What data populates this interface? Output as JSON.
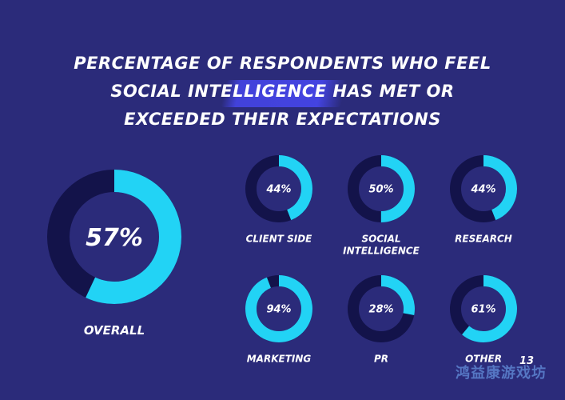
{
  "colors": {
    "background": "#2b2b7a",
    "track": "#13134a",
    "fill": "#22d3f5",
    "text": "#ffffff"
  },
  "page_number": "13",
  "watermark": "鸿益康游戏坊",
  "chart_data": [
    {
      "type": "pie",
      "title": "PERCENTAGE OF RESPONDENTS WHO FEEL SOCIAL INTELLIGENCE HAS MET OR EXCEEDED THEIR EXPECTATIONS",
      "title_lines": [
        "PERCENTAGE OF RESPONDENTS WHO FEEL",
        "SOCIAL INTELLIGENCE HAS MET OR",
        "EXCEEDED THEIR EXPECTATIONS"
      ],
      "style": "donut",
      "categories": [
        "OVERALL",
        "CLIENT SIDE",
        "SOCIAL INTELLIGENCE",
        "RESEARCH",
        "MARKETING",
        "PR",
        "OTHER"
      ],
      "values": [
        57,
        44,
        50,
        44,
        94,
        28,
        61
      ],
      "value_labels": [
        "57%",
        "44%",
        "50%",
        "44%",
        "94%",
        "28%",
        "61%"
      ],
      "category_lines": [
        [
          "OVERALL"
        ],
        [
          "CLIENT SIDE"
        ],
        [
          "SOCIAL",
          "INTELLIGENCE"
        ],
        [
          "RESEARCH"
        ],
        [
          "MARKETING"
        ],
        [
          "PR"
        ],
        [
          "OTHER"
        ]
      ]
    }
  ]
}
